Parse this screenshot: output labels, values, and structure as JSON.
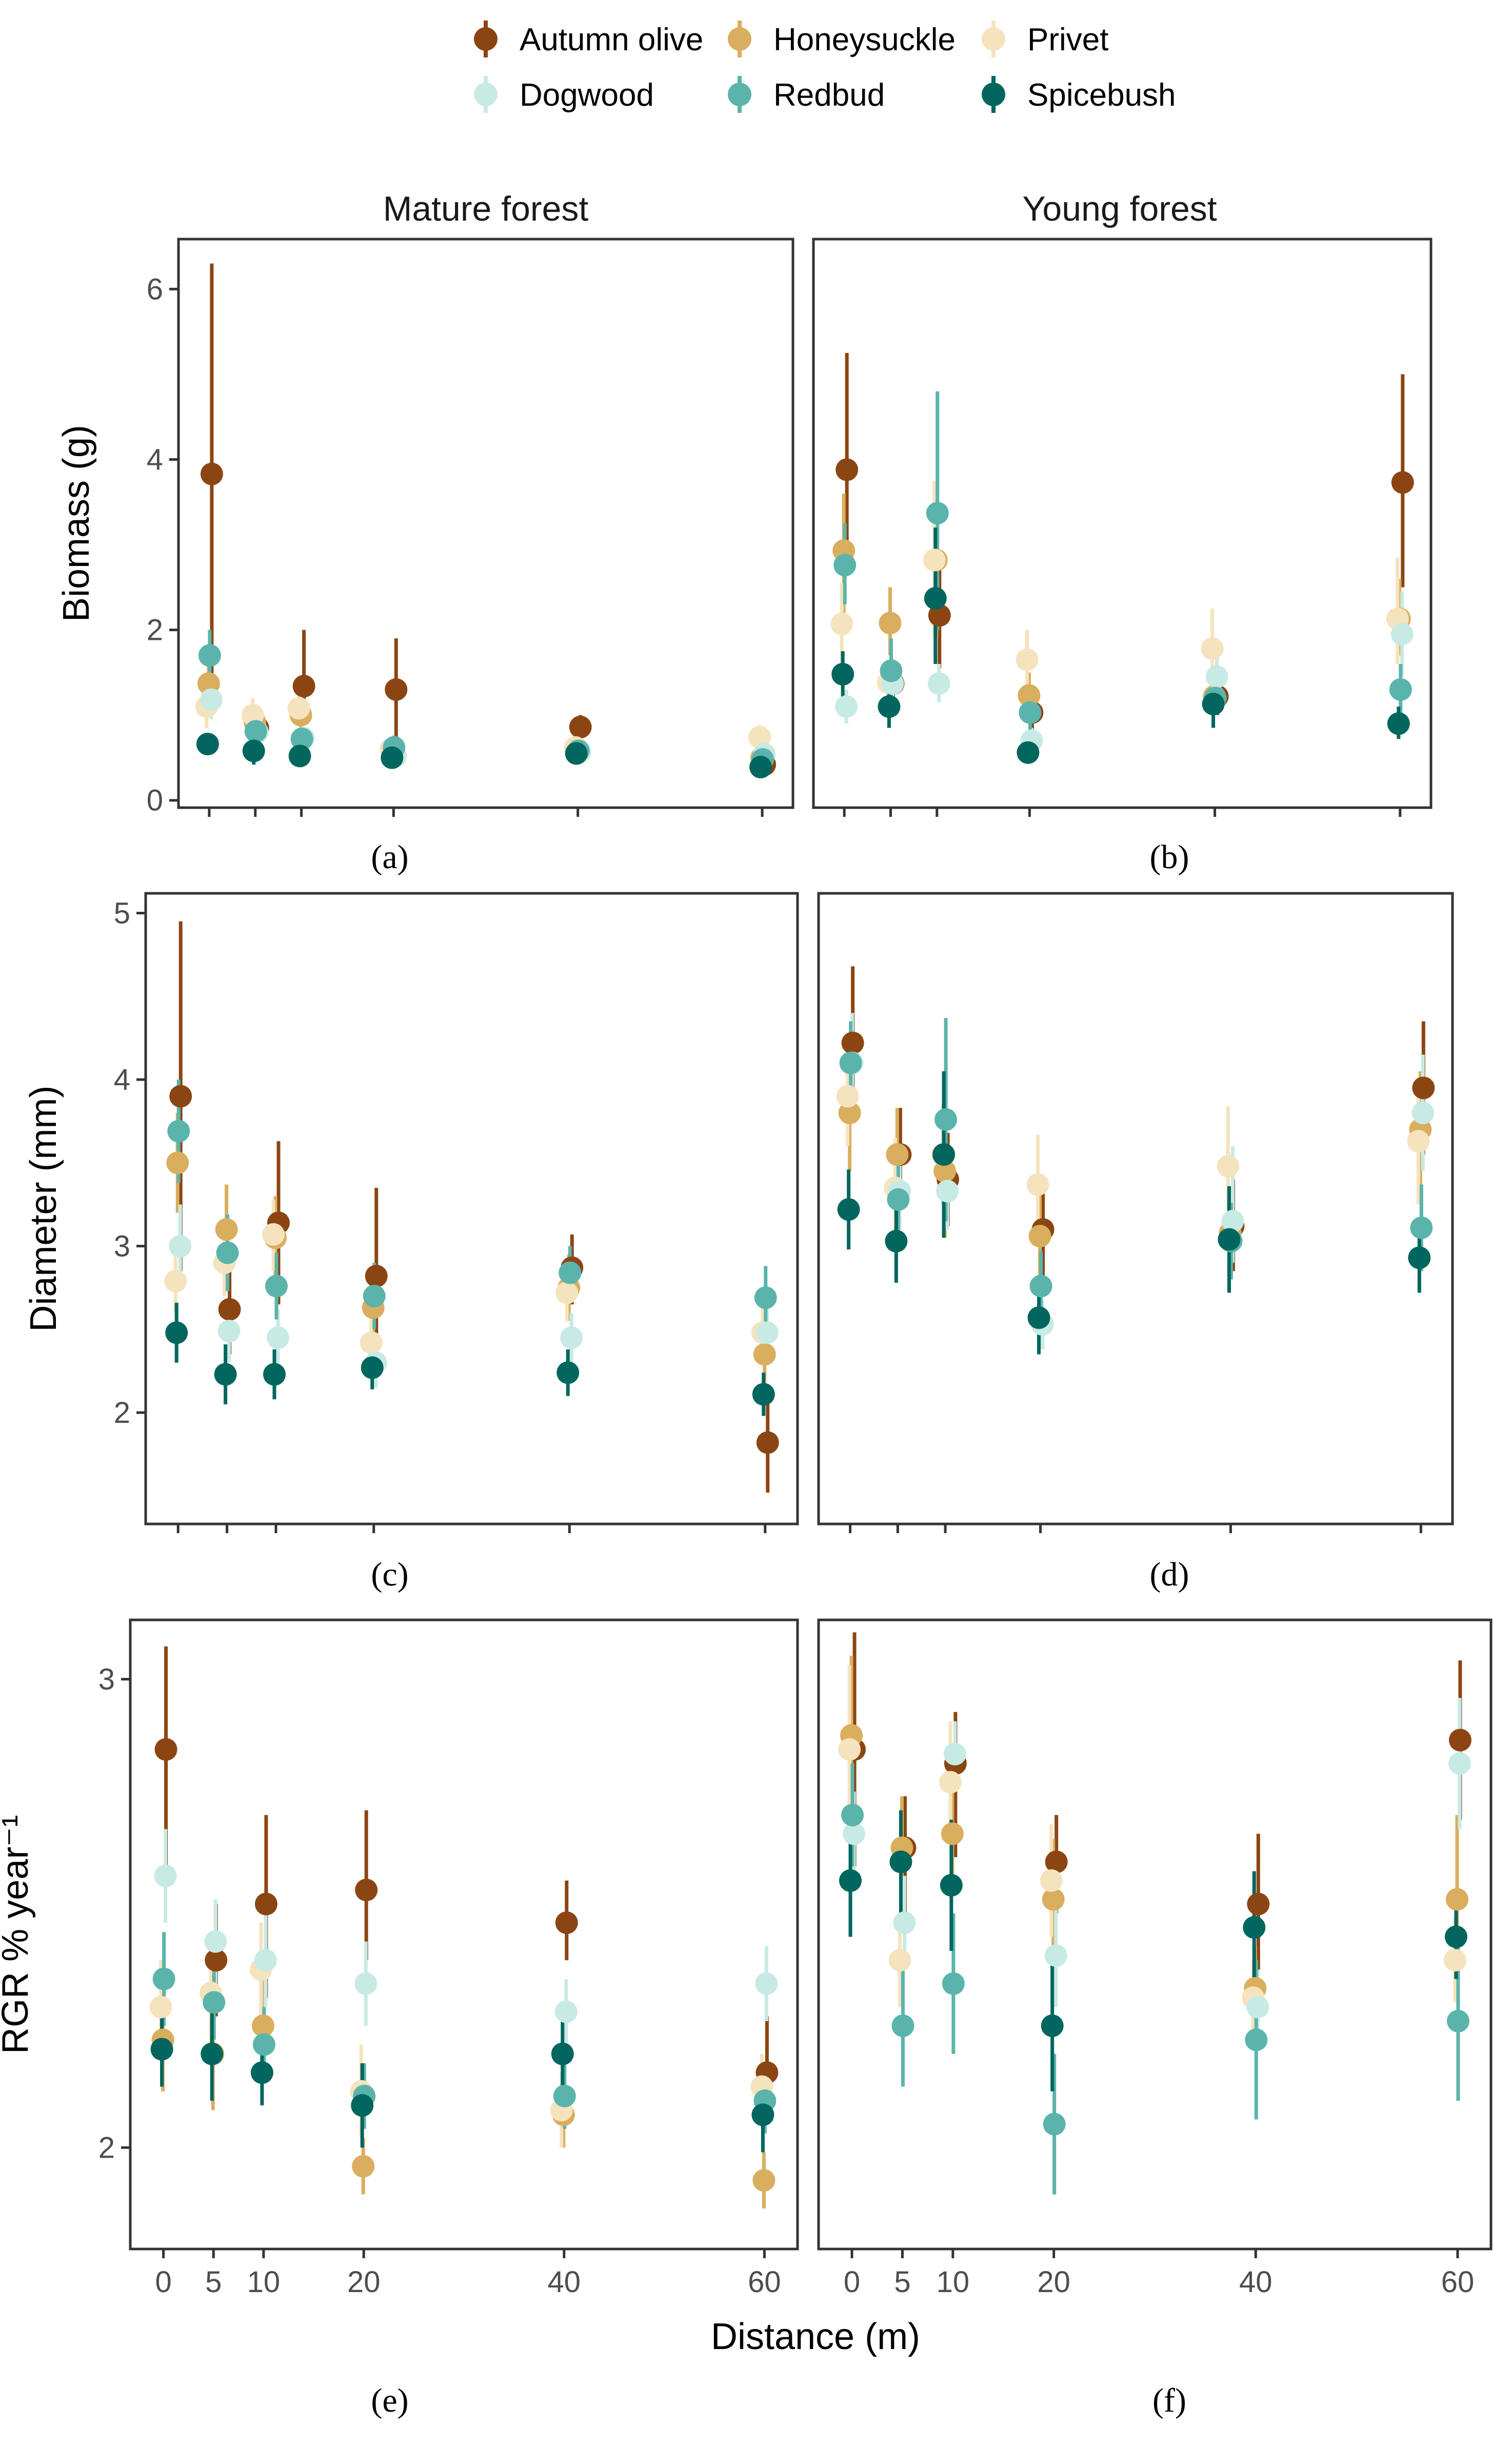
{
  "legend": {
    "items": [
      {
        "name": "Autumn olive",
        "color": "#8B4513"
      },
      {
        "name": "Honeysuckle",
        "color": "#D9AE5E"
      },
      {
        "name": "Privet",
        "color": "#F5E3BD"
      },
      {
        "name": "Dogwood",
        "color": "#C7EAE5"
      },
      {
        "name": "Redbud",
        "color": "#5AB4AC"
      },
      {
        "name": "Spicebush",
        "color": "#01665E"
      }
    ]
  },
  "facets": [
    "Mature forest",
    "Young forest"
  ],
  "panel_letters": [
    "(a)",
    "(b)",
    "(c)",
    "(d)",
    "(e)",
    "(f)"
  ],
  "x_axis": {
    "label": "Distance (m)",
    "ticks": [
      0,
      5,
      10,
      20,
      40,
      60
    ],
    "lim": [
      -3,
      63
    ]
  },
  "chart_data": [
    {
      "type": "scatter",
      "panel": "(a)",
      "facet": "Mature forest",
      "xlabel": "",
      "ylabel": "Biomass (g)",
      "ylim": [
        -0.05,
        6.55
      ],
      "yticks": [
        0,
        2,
        4,
        6
      ],
      "x": [
        0,
        5,
        10,
        20,
        40,
        60
      ],
      "series": [
        {
          "name": "Autumn olive",
          "values": [
            3.83,
            0.85,
            1.34,
            1.3,
            0.86,
            0.42
          ],
          "lower": [
            1.4,
            0.6,
            0.9,
            0.7,
            0.7,
            0.35
          ],
          "upper": [
            6.3,
            1.1,
            2.0,
            1.9,
            1.0,
            0.5
          ]
        },
        {
          "name": "Honeysuckle",
          "values": [
            1.37,
            0.92,
            1.0,
            0.6,
            0.6,
            0.5
          ],
          "lower": [
            1.0,
            0.7,
            0.8,
            0.45,
            0.45,
            0.4
          ],
          "upper": [
            1.7,
            1.1,
            1.2,
            0.75,
            0.75,
            0.6
          ]
        },
        {
          "name": "Privet",
          "values": [
            1.1,
            1.0,
            1.08,
            0.6,
            0.62,
            0.74
          ],
          "lower": [
            0.85,
            0.8,
            0.9,
            0.45,
            0.5,
            0.6
          ],
          "upper": [
            1.35,
            1.2,
            1.25,
            0.75,
            0.75,
            0.88
          ]
        },
        {
          "name": "Dogwood",
          "values": [
            1.18,
            0.8,
            0.73,
            0.52,
            0.57,
            0.54
          ],
          "lower": [
            0.95,
            0.65,
            0.6,
            0.42,
            0.45,
            0.43
          ],
          "upper": [
            1.4,
            0.95,
            0.86,
            0.62,
            0.7,
            0.65
          ]
        },
        {
          "name": "Redbud",
          "values": [
            1.7,
            0.81,
            0.72,
            0.62,
            0.58,
            0.48
          ],
          "lower": [
            1.3,
            0.65,
            0.58,
            0.48,
            0.45,
            0.38
          ],
          "upper": [
            2.0,
            0.97,
            0.86,
            0.76,
            0.7,
            0.58
          ]
        },
        {
          "name": "Spicebush",
          "values": [
            0.66,
            0.58,
            0.52,
            0.5,
            0.55,
            0.39
          ],
          "lower": [
            0.55,
            0.42,
            0.4,
            0.42,
            0.47,
            0.3
          ],
          "upper": [
            0.77,
            0.72,
            0.64,
            0.58,
            0.63,
            0.48
          ]
        }
      ]
    },
    {
      "type": "scatter",
      "panel": "(b)",
      "facet": "Young forest",
      "xlabel": "",
      "ylabel": "Biomass (g)",
      "ylim": [
        -0.05,
        6.55
      ],
      "yticks": [
        0,
        2,
        4,
        6
      ],
      "x": [
        0,
        5,
        10,
        20,
        40,
        60
      ],
      "series": [
        {
          "name": "Autumn olive",
          "values": [
            3.88,
            1.37,
            2.17,
            1.03,
            1.22,
            3.73
          ],
          "lower": [
            2.7,
            1.1,
            1.55,
            0.8,
            1.0,
            2.5
          ],
          "upper": [
            5.25,
            1.65,
            2.8,
            1.3,
            1.45,
            5.0
          ]
        },
        {
          "name": "Honeysuckle",
          "values": [
            2.93,
            2.08,
            2.82,
            1.23,
            1.22,
            2.13
          ],
          "lower": [
            2.2,
            1.7,
            1.9,
            0.95,
            1.0,
            1.7
          ],
          "upper": [
            3.6,
            2.5,
            3.75,
            1.5,
            1.45,
            2.6
          ]
        },
        {
          "name": "Privet",
          "values": [
            2.07,
            1.38,
            2.82,
            1.65,
            1.78,
            2.13
          ],
          "lower": [
            1.6,
            1.1,
            1.9,
            1.3,
            1.35,
            1.6
          ],
          "upper": [
            2.55,
            1.65,
            3.75,
            2.0,
            2.25,
            2.85
          ]
        },
        {
          "name": "Dogwood",
          "values": [
            1.1,
            1.37,
            1.37,
            0.7,
            1.45,
            1.95
          ],
          "lower": [
            0.9,
            1.15,
            1.15,
            0.55,
            1.2,
            1.45
          ],
          "upper": [
            1.3,
            1.6,
            1.6,
            0.85,
            1.7,
            2.45
          ]
        },
        {
          "name": "Redbud",
          "values": [
            2.76,
            1.52,
            3.37,
            1.03,
            1.2,
            1.3
          ],
          "lower": [
            2.3,
            1.15,
            2.0,
            0.75,
            1.0,
            1.0
          ],
          "upper": [
            3.25,
            1.9,
            4.8,
            1.3,
            1.4,
            1.6
          ]
        },
        {
          "name": "Spicebush",
          "values": [
            1.48,
            1.1,
            2.37,
            0.56,
            1.13,
            0.9
          ],
          "lower": [
            1.2,
            0.85,
            1.6,
            0.45,
            0.85,
            0.72
          ],
          "upper": [
            1.75,
            1.35,
            3.2,
            0.67,
            1.4,
            1.1
          ]
        }
      ]
    },
    {
      "type": "scatter",
      "panel": "(c)",
      "facet": "Mature forest",
      "xlabel": "",
      "ylabel": "Diameter (mm)",
      "ylim": [
        1.35,
        5.1
      ],
      "yticks": [
        2,
        3,
        4,
        5
      ],
      "x": [
        0,
        5,
        10,
        20,
        40,
        60
      ],
      "series": [
        {
          "name": "Autumn olive",
          "values": [
            3.9,
            2.62,
            3.14,
            2.82,
            2.87,
            1.82
          ],
          "lower": [
            2.85,
            2.35,
            2.65,
            2.3,
            2.65,
            1.52
          ],
          "upper": [
            4.95,
            2.9,
            3.63,
            3.35,
            3.07,
            2.12
          ]
        },
        {
          "name": "Honeysuckle",
          "values": [
            3.5,
            3.1,
            3.05,
            2.63,
            2.75,
            2.35
          ],
          "lower": [
            3.2,
            2.85,
            2.8,
            2.4,
            2.55,
            2.1
          ],
          "upper": [
            3.8,
            3.37,
            3.3,
            2.86,
            2.95,
            2.6
          ]
        },
        {
          "name": "Privet",
          "values": [
            2.79,
            2.9,
            3.07,
            2.42,
            2.72,
            2.48
          ],
          "lower": [
            2.6,
            2.7,
            2.85,
            2.25,
            2.55,
            2.3
          ],
          "upper": [
            3.0,
            3.1,
            3.28,
            2.6,
            2.9,
            2.66
          ]
        },
        {
          "name": "Dogwood",
          "values": [
            3.0,
            2.49,
            2.45,
            2.3,
            2.45,
            2.48
          ],
          "lower": [
            2.75,
            2.3,
            2.28,
            2.15,
            2.3,
            2.3
          ],
          "upper": [
            3.25,
            2.68,
            2.62,
            2.45,
            2.6,
            2.66
          ]
        },
        {
          "name": "Redbud",
          "values": [
            3.69,
            2.96,
            2.76,
            2.7,
            2.84,
            2.69
          ],
          "lower": [
            3.38,
            2.73,
            2.56,
            2.5,
            2.68,
            2.5
          ],
          "upper": [
            4.0,
            3.19,
            2.96,
            2.9,
            3.0,
            2.88
          ]
        },
        {
          "name": "Spicebush",
          "values": [
            2.48,
            2.23,
            2.23,
            2.27,
            2.24,
            2.11
          ],
          "lower": [
            2.3,
            2.05,
            2.08,
            2.14,
            2.1,
            1.98
          ],
          "upper": [
            2.66,
            2.41,
            2.38,
            2.4,
            2.38,
            2.24
          ]
        }
      ]
    },
    {
      "type": "scatter",
      "panel": "(d)",
      "facet": "Young forest",
      "xlabel": "",
      "ylabel": "Diameter (mm)",
      "ylim": [
        1.35,
        5.1
      ],
      "yticks": [
        2,
        3,
        4,
        5
      ],
      "x": [
        0,
        5,
        10,
        20,
        40,
        60
      ],
      "series": [
        {
          "name": "Autumn olive",
          "values": [
            4.22,
            3.55,
            3.4,
            3.1,
            3.12,
            3.95
          ],
          "lower": [
            3.78,
            3.27,
            3.12,
            2.8,
            2.85,
            3.55
          ],
          "upper": [
            4.68,
            3.83,
            3.68,
            3.35,
            3.4,
            4.35
          ]
        },
        {
          "name": "Honeysuckle",
          "values": [
            3.8,
            3.55,
            3.45,
            3.06,
            3.08,
            3.7
          ],
          "lower": [
            3.45,
            3.27,
            3.05,
            2.75,
            2.8,
            3.35
          ],
          "upper": [
            4.15,
            3.83,
            3.85,
            3.37,
            3.36,
            4.05
          ]
        },
        {
          "name": "Privet",
          "values": [
            3.9,
            3.35,
            3.55,
            3.37,
            3.48,
            3.63
          ],
          "lower": [
            3.6,
            3.05,
            3.25,
            3.05,
            3.12,
            3.25
          ],
          "upper": [
            4.2,
            3.65,
            3.85,
            3.67,
            3.84,
            4.01
          ]
        },
        {
          "name": "Dogwood",
          "values": [
            4.1,
            3.33,
            3.33,
            2.53,
            3.15,
            3.8
          ],
          "lower": [
            3.8,
            3.1,
            3.1,
            2.38,
            2.9,
            3.45
          ],
          "upper": [
            4.4,
            3.56,
            3.56,
            2.68,
            3.6,
            4.15
          ]
        },
        {
          "name": "Redbud",
          "values": [
            4.1,
            3.28,
            3.76,
            2.76,
            3.03,
            3.11
          ],
          "lower": [
            3.85,
            3.05,
            3.15,
            2.55,
            2.8,
            2.85
          ],
          "upper": [
            4.35,
            3.51,
            4.37,
            2.97,
            3.26,
            3.37
          ]
        },
        {
          "name": "Spicebush",
          "values": [
            3.22,
            3.03,
            3.55,
            2.57,
            3.04,
            2.93
          ],
          "lower": [
            2.98,
            2.78,
            3.05,
            2.35,
            2.72,
            2.72
          ],
          "upper": [
            3.46,
            3.28,
            4.05,
            2.79,
            3.36,
            3.14
          ]
        }
      ]
    },
    {
      "type": "scatter",
      "panel": "(e)",
      "facet": "Mature forest",
      "xlabel": "Distance (m)",
      "ylabel": "RGR % year⁻¹",
      "ylim": [
        1.79,
        3.12
      ],
      "yticks": [
        2,
        3
      ],
      "x": [
        0,
        5,
        10,
        20,
        40,
        60
      ],
      "series": [
        {
          "name": "Autumn olive",
          "values": [
            2.85,
            2.4,
            2.52,
            2.55,
            2.48,
            2.16
          ],
          "lower": [
            2.6,
            2.28,
            2.32,
            2.4,
            2.4,
            2.06
          ],
          "upper": [
            3.07,
            2.52,
            2.71,
            2.72,
            2.57,
            2.28
          ]
        },
        {
          "name": "Honeysuckle",
          "values": [
            2.23,
            2.2,
            2.26,
            1.96,
            2.07,
            1.93
          ],
          "lower": [
            2.12,
            2.08,
            2.16,
            1.9,
            2.0,
            1.87
          ],
          "upper": [
            2.34,
            2.32,
            2.36,
            2.02,
            2.14,
            1.99
          ]
        },
        {
          "name": "Privet",
          "values": [
            2.3,
            2.33,
            2.38,
            2.12,
            2.08,
            2.13
          ],
          "lower": [
            2.2,
            2.2,
            2.28,
            2.02,
            2.0,
            2.06
          ],
          "upper": [
            2.4,
            2.46,
            2.48,
            2.22,
            2.16,
            2.2
          ]
        },
        {
          "name": "Dogwood",
          "values": [
            2.58,
            2.44,
            2.4,
            2.35,
            2.29,
            2.35
          ],
          "lower": [
            2.48,
            2.35,
            2.3,
            2.26,
            2.22,
            2.27
          ],
          "upper": [
            2.68,
            2.53,
            2.5,
            2.44,
            2.36,
            2.43
          ]
        },
        {
          "name": "Redbud",
          "values": [
            2.36,
            2.31,
            2.22,
            2.11,
            2.11,
            2.1
          ],
          "lower": [
            2.26,
            2.23,
            2.14,
            2.04,
            2.04,
            2.03
          ],
          "upper": [
            2.46,
            2.39,
            2.3,
            2.18,
            2.18,
            2.17
          ]
        },
        {
          "name": "Spicebush",
          "values": [
            2.21,
            2.2,
            2.16,
            2.09,
            2.2,
            2.07
          ],
          "lower": [
            2.13,
            2.1,
            2.09,
            2.0,
            2.12,
            1.99
          ],
          "upper": [
            2.29,
            2.3,
            2.23,
            2.18,
            2.28,
            2.15
          ]
        }
      ]
    },
    {
      "type": "scatter",
      "panel": "(f)",
      "facet": "Young forest",
      "xlabel": "Distance (m)",
      "ylabel": "RGR % year⁻¹",
      "ylim": [
        1.79,
        3.12
      ],
      "yticks": [
        2,
        3
      ],
      "x": [
        0,
        5,
        10,
        20,
        40,
        60
      ],
      "series": [
        {
          "name": "Autumn olive",
          "values": [
            2.85,
            2.64,
            2.82,
            2.61,
            2.52,
            2.87
          ],
          "lower": [
            2.6,
            2.5,
            2.62,
            2.5,
            2.38,
            2.7
          ],
          "upper": [
            3.1,
            2.75,
            2.93,
            2.71,
            2.67,
            3.04
          ]
        },
        {
          "name": "Honeysuckle",
          "values": [
            2.88,
            2.64,
            2.67,
            2.53,
            2.34,
            2.53
          ],
          "lower": [
            2.7,
            2.5,
            2.55,
            2.4,
            2.25,
            2.35
          ],
          "upper": [
            3.05,
            2.75,
            2.79,
            2.66,
            2.43,
            2.71
          ]
        },
        {
          "name": "Privet",
          "values": [
            2.85,
            2.4,
            2.78,
            2.57,
            2.32,
            2.4
          ],
          "lower": [
            2.67,
            2.3,
            2.65,
            2.45,
            2.24,
            2.31
          ],
          "upper": [
            3.03,
            2.5,
            2.91,
            2.69,
            2.4,
            2.49
          ]
        },
        {
          "name": "Dogwood",
          "values": [
            2.67,
            2.48,
            2.84,
            2.41,
            2.3,
            2.82
          ],
          "lower": [
            2.58,
            2.38,
            2.77,
            2.3,
            2.22,
            2.68
          ],
          "upper": [
            2.76,
            2.58,
            2.91,
            2.52,
            2.38,
            2.96
          ]
        },
        {
          "name": "Redbud",
          "values": [
            2.71,
            2.26,
            2.35,
            2.05,
            2.23,
            2.27
          ],
          "lower": [
            2.6,
            2.13,
            2.2,
            1.9,
            2.06,
            2.1
          ],
          "upper": [
            2.82,
            2.39,
            2.5,
            2.2,
            2.4,
            2.44
          ]
        },
        {
          "name": "Spicebush",
          "values": [
            2.57,
            2.61,
            2.56,
            2.26,
            2.47,
            2.45
          ],
          "lower": [
            2.45,
            2.5,
            2.42,
            2.12,
            2.35,
            2.36
          ],
          "upper": [
            2.69,
            2.72,
            2.7,
            2.4,
            2.59,
            2.54
          ]
        }
      ]
    }
  ]
}
